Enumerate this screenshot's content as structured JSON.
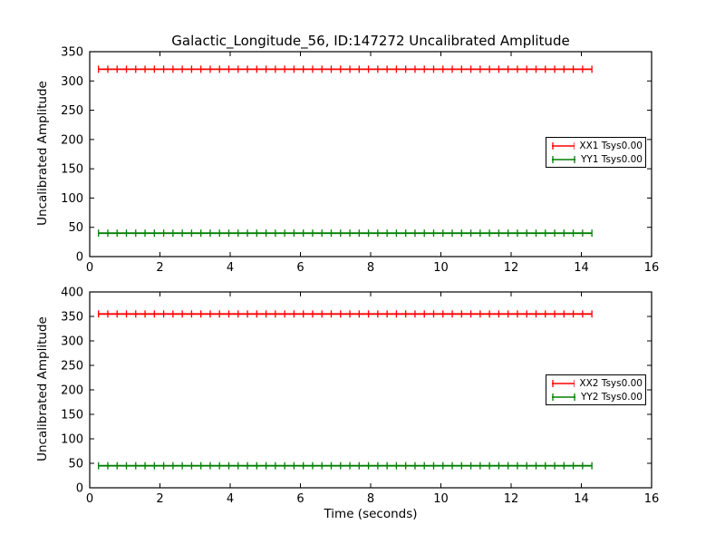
{
  "figure": {
    "title": "Galactic_Longitude_56, ID:147272 Uncalibrated Amplitude",
    "background": "#ffffff",
    "text_color": "#000000"
  },
  "chart_data": [
    {
      "type": "line",
      "subtype": "errorbar-constant",
      "title": "Galactic_Longitude_56, ID:147272 Uncalibrated Amplitude",
      "xlabel": "",
      "ylabel": "Uncalibrated Amplitude",
      "xlim": [
        0,
        16
      ],
      "ylim": [
        0,
        350
      ],
      "xticks": [
        0,
        2,
        4,
        6,
        8,
        10,
        12,
        14,
        16
      ],
      "yticks": [
        0,
        50,
        100,
        150,
        200,
        250,
        300,
        350
      ],
      "grid": false,
      "legend_position": "center-right",
      "series": [
        {
          "name": "XX1 Tsys0.00",
          "color": "#ff0000",
          "y": 320,
          "x_start": 0.25,
          "x_end": 14.3,
          "n_points": 54
        },
        {
          "name": "YY1 Tsys0.00",
          "color": "#008000",
          "y": 40,
          "x_start": 0.25,
          "x_end": 14.3,
          "n_points": 54
        }
      ]
    },
    {
      "type": "line",
      "subtype": "errorbar-constant",
      "title": "",
      "xlabel": "Time (seconds)",
      "ylabel": "Uncalibrated Amplitude",
      "xlim": [
        0,
        16
      ],
      "ylim": [
        0,
        400
      ],
      "xticks": [
        0,
        2,
        4,
        6,
        8,
        10,
        12,
        14,
        16
      ],
      "yticks": [
        0,
        50,
        100,
        150,
        200,
        250,
        300,
        350,
        400
      ],
      "grid": false,
      "legend_position": "center-right",
      "series": [
        {
          "name": "XX2 Tsys0.00",
          "color": "#ff0000",
          "y": 355,
          "x_start": 0.25,
          "x_end": 14.3,
          "n_points": 54
        },
        {
          "name": "YY2 Tsys0.00",
          "color": "#008000",
          "y": 45,
          "x_start": 0.25,
          "x_end": 14.3,
          "n_points": 54
        }
      ]
    }
  ]
}
